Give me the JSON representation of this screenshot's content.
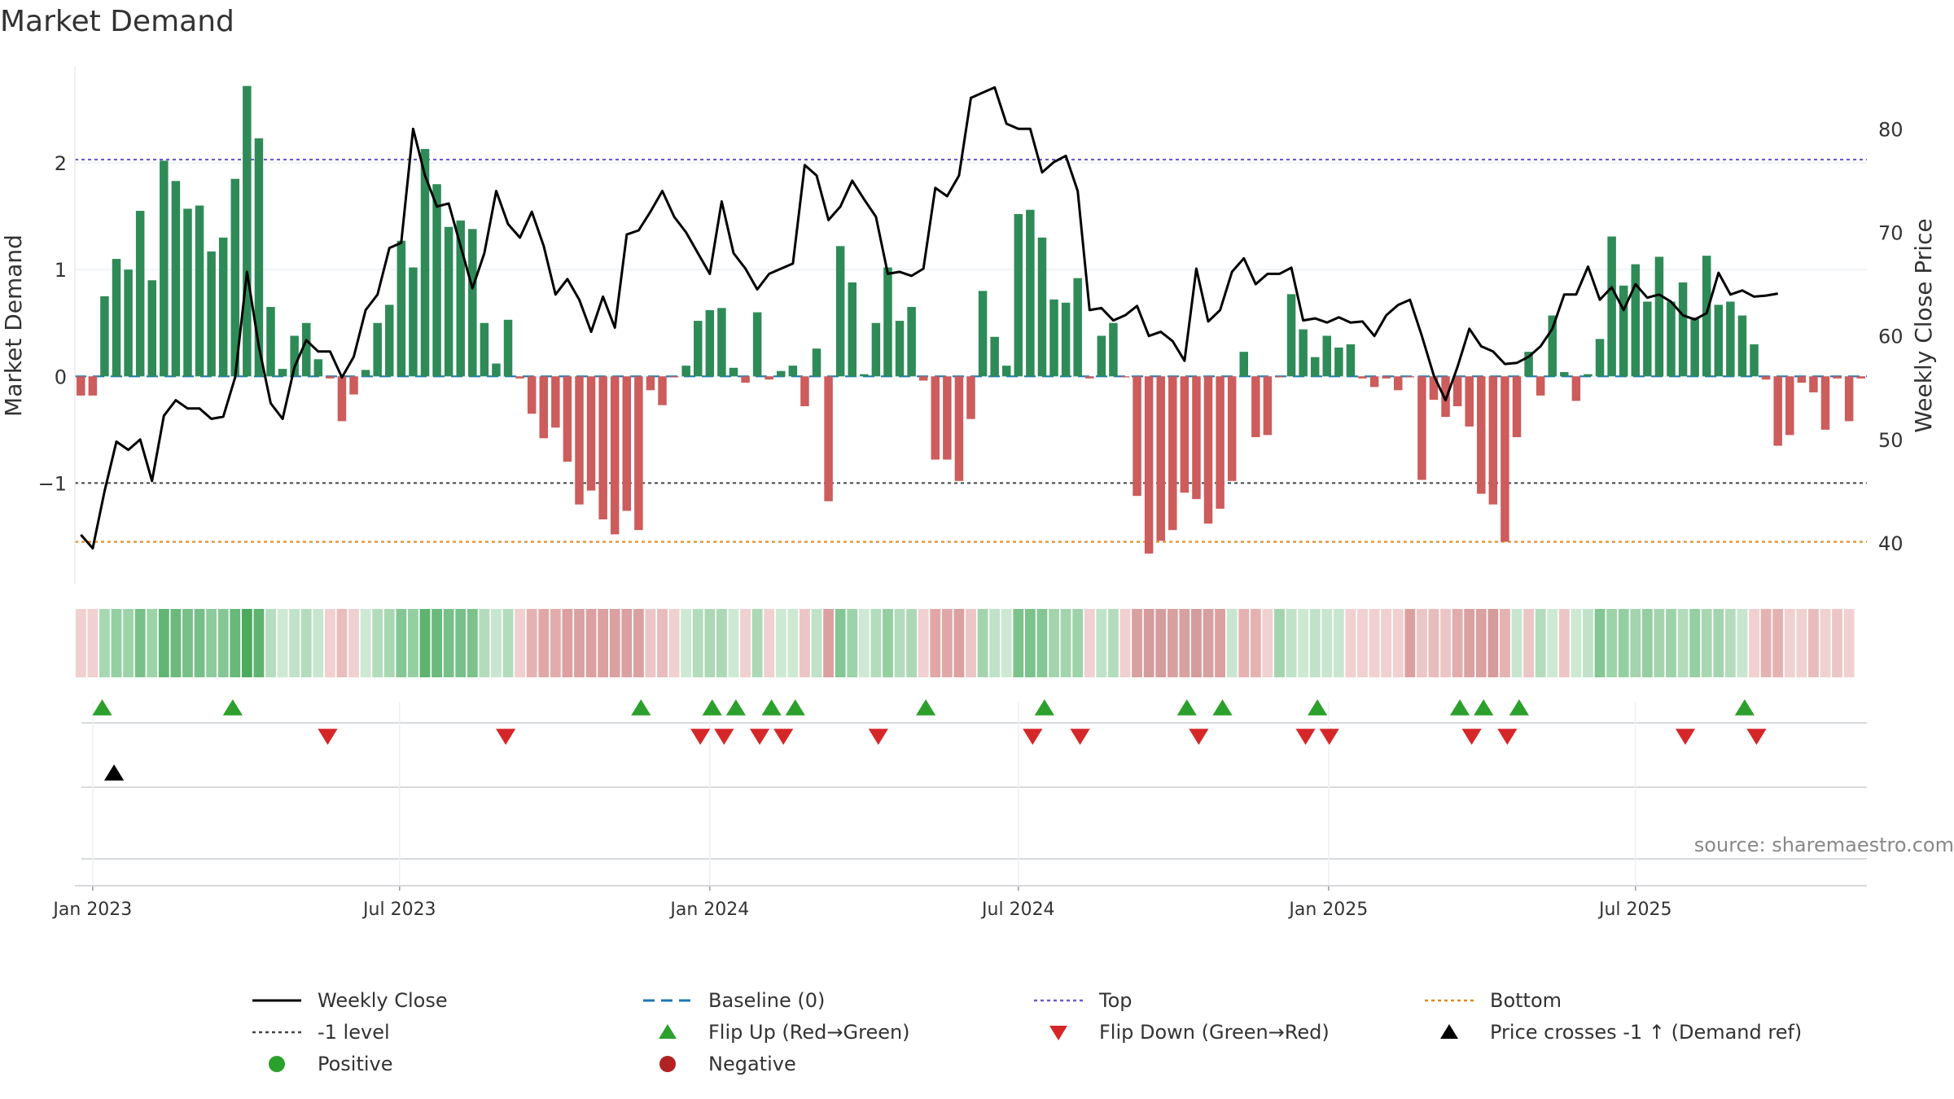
{
  "chart_data": {
    "type": "bar",
    "title": "Market Demand",
    "ylabel": "Market Demand",
    "y2label": "Weekly Close Price",
    "ylim": [
      -1.95,
      2.9
    ],
    "y2lim": [
      36,
      86
    ],
    "yticks": [
      -1,
      0,
      1,
      2
    ],
    "ytick_labels": [
      "−1",
      "0",
      "1",
      "2"
    ],
    "y2ticks": [
      40,
      50,
      60,
      70,
      80
    ],
    "y2tick_labels": [
      "40",
      "50",
      "60",
      "70",
      "80"
    ],
    "x_start_week_offset": -1,
    "xticks": [
      {
        "label": "Jan 2023",
        "week": 0
      },
      {
        "label": "Jul 2023",
        "week": 25.86
      },
      {
        "label": "Jan 2024",
        "week": 52
      },
      {
        "label": "Jul 2024",
        "week": 78
      },
      {
        "label": "Jan 2025",
        "week": 104.14
      },
      {
        "label": "Jul 2025",
        "week": 130
      }
    ],
    "reference_lines": {
      "top": 2.03,
      "bottom": -1.55,
      "level_minus1": -1,
      "baseline": 0
    },
    "demand": [
      -0.18,
      -0.18,
      0.75,
      1.1,
      1,
      1.55,
      0.9,
      2.02,
      1.83,
      1.57,
      1.6,
      1.17,
      1.3,
      1.85,
      2.72,
      2.23,
      0.65,
      0.07,
      0.38,
      0.5,
      0.16,
      -0.02,
      -0.42,
      -0.17,
      0.06,
      0.5,
      0.67,
      1.27,
      1.02,
      2.13,
      1.8,
      1.4,
      1.46,
      1.38,
      0.5,
      0.12,
      0.53,
      -0.02,
      -0.35,
      -0.58,
      -0.48,
      -0.8,
      -1.2,
      -1.07,
      -1.34,
      -1.48,
      -1.26,
      -1.44,
      -0.13,
      -0.27,
      -0.01,
      0.1,
      0.52,
      0.62,
      0.64,
      0.08,
      -0.06,
      0.6,
      -0.03,
      0.05,
      0.1,
      -0.28,
      0.26,
      -1.17,
      1.22,
      0.88,
      0.02,
      0.5,
      1.02,
      0.52,
      0.65,
      -0.04,
      -0.78,
      -0.78,
      -0.98,
      -0.4,
      0.8,
      0.37,
      0.1,
      1.52,
      1.56,
      1.3,
      0.72,
      0.69,
      0.92,
      -0.02,
      0.38,
      0.5,
      -0.01,
      -1.12,
      -1.66,
      -1.54,
      -1.44,
      -1.09,
      -1.15,
      -1.38,
      -1.24,
      -0.98,
      0.23,
      -0.57,
      -0.55,
      -0.01,
      0.77,
      0.44,
      0.18,
      0.38,
      0.27,
      0.3,
      -0.02,
      -0.1,
      -0.02,
      -0.13,
      -0.01,
      -0.97,
      -0.22,
      -0.38,
      -0.28,
      -0.47,
      -1.1,
      -1.2,
      -1.55,
      -0.57,
      0.23,
      -0.18,
      0.57,
      0.04,
      -0.23,
      0.02,
      0.35,
      1.31,
      0.85,
      1.05,
      0.7,
      1.12,
      0.7,
      0.88,
      0.55,
      1.13,
      0.67,
      0.7,
      0.57,
      0.3,
      -0.03,
      -0.65,
      -0.55,
      -0.06,
      -0.15,
      -0.5,
      -0.02,
      -0.42,
      -0.02
    ],
    "weekly_close": [
      40.8,
      39.5,
      45,
      49.8,
      49,
      50,
      46,
      52.3,
      53.8,
      53,
      53,
      52,
      52.2,
      56,
      66.2,
      59,
      53.5,
      52,
      57,
      59.6,
      58.5,
      58.5,
      56,
      58,
      62.5,
      64,
      68.5,
      69,
      80,
      75.5,
      72.5,
      72.8,
      68.7,
      64.6,
      68,
      74,
      70.8,
      69.5,
      72,
      68.7,
      64,
      65.5,
      63.5,
      60.4,
      63.8,
      60.8,
      69.8,
      70.2,
      72,
      74,
      71.5,
      70,
      68,
      66,
      73,
      68,
      66.5,
      64.5,
      66,
      66.5,
      67,
      76.5,
      75.5,
      71.2,
      72.5,
      75,
      73.2,
      71.5,
      66,
      66.2,
      65.8,
      66.5,
      74.3,
      73.5,
      75.5,
      83,
      83.5,
      84,
      80.5,
      80,
      80,
      75.8,
      76.8,
      77.4,
      74,
      62.5,
      62.7,
      61.5,
      62,
      62.9,
      60,
      60.4,
      59.5,
      57.6,
      66.5,
      61.4,
      62.5,
      66.2,
      67.5,
      65,
      66,
      66,
      66.6,
      61.5,
      61.7,
      61.3,
      61.8,
      61.3,
      61.4,
      60,
      62,
      63,
      63.5,
      60,
      56.2,
      53.8,
      57,
      60.7,
      59,
      58.5,
      57.3,
      57.4,
      58,
      59,
      60.7,
      64,
      64,
      66.7,
      63.5,
      64.7,
      62.5,
      65,
      63.7,
      64,
      63.3,
      62,
      61.6,
      62.2,
      66.1,
      64,
      64.4,
      63.8,
      63.9,
      64.1
    ],
    "heat_colors": [
      "#f0d0d0",
      "#f0d0d0",
      "#a8d8b2",
      "#94cfa2",
      "#9dd3a9",
      "#78c089",
      "#9dd3a9",
      "#62b674",
      "#6bba7c",
      "#78c089",
      "#76bf88",
      "#8ccb9b",
      "#84c794",
      "#68b879",
      "#4aaa5e",
      "#5eb371",
      "#b6ddbf",
      "#cde9d3",
      "#bfe2c8",
      "#b3dcbd",
      "#c8e6cf",
      "#f0d0d0",
      "#eabdbd",
      "#f0d0d0",
      "#cde9d3",
      "#b3dcbd",
      "#a8d8b2",
      "#84c794",
      "#94cfa2",
      "#5eb371",
      "#6bba7c",
      "#78c089",
      "#78c089",
      "#7bc28b",
      "#b3dcbd",
      "#c8e6cf",
      "#b3dcbd",
      "#f0d0d0",
      "#e5b2b2",
      "#e1a7a7",
      "#e3acac",
      "#dda0a0",
      "#dba0a0",
      "#dda0a0",
      "#dba0a0",
      "#dba0a0",
      "#dba0a0",
      "#dba0a0",
      "#ecc6c6",
      "#e8bcbc",
      "#f0d0d0",
      "#cde9d3",
      "#b3dcbd",
      "#acd8b6",
      "#acd8b6",
      "#cde9d3",
      "#f0d0d0",
      "#acd8b6",
      "#f0d0d0",
      "#cde9d3",
      "#cde9d3",
      "#ecc6c6",
      "#bfe2c8",
      "#dba0a0",
      "#84c794",
      "#9dd3a9",
      "#cde9d3",
      "#b3dcbd",
      "#94cfa2",
      "#b3dcbd",
      "#acd8b6",
      "#f0d0d0",
      "#e1a7a7",
      "#e1a7a7",
      "#dda0a0",
      "#ecc6c6",
      "#a4d4ae",
      "#bfe2c8",
      "#cde9d3",
      "#7bc28b",
      "#7bc28b",
      "#84c794",
      "#a4d4ae",
      "#a4d4ae",
      "#9dd3a9",
      "#f0d0d0",
      "#bfe2c8",
      "#b3dcbd",
      "#f0d0d0",
      "#d9a0a0",
      "#d59c9c",
      "#d59c9c",
      "#d9a0a0",
      "#d9a0a0",
      "#d59c9c",
      "#d9a0a0",
      "#dda0a0",
      "#c8e6cf",
      "#e5b2b2",
      "#e5b2b2",
      "#f0d0d0",
      "#a4d4ae",
      "#bfe2c8",
      "#cde9d3",
      "#bfe2c8",
      "#c8e6cf",
      "#c8e6cf",
      "#f0d0d0",
      "#f0d0d0",
      "#f0d0d0",
      "#f0d0d0",
      "#f0d0d0",
      "#dda0a0",
      "#ecc6c6",
      "#e8bcbc",
      "#ecc6c6",
      "#e3acac",
      "#dba0a0",
      "#dba0a0",
      "#d59c9c",
      "#e5b2b2",
      "#c8e6cf",
      "#ecc6c6",
      "#b3dcbd",
      "#cde9d3",
      "#ecc6c6",
      "#cde9d3",
      "#bfe2c8",
      "#84c794",
      "#9dd3a9",
      "#94cfa2",
      "#a4d4ae",
      "#94cfa2",
      "#a4d4ae",
      "#9dd3a9",
      "#b3dcbd",
      "#94cfa2",
      "#a8d8b2",
      "#a4d4ae",
      "#b3dcbd",
      "#c8e6cf",
      "#f0d0d0",
      "#e5b2b2",
      "#e5b2b2",
      "#f0d0d0",
      "#f0d0d0",
      "#e8bcbc",
      "#f0d0d0",
      "#ecc6c6",
      "#f0d0d0"
    ],
    "flip_up_weeks": [
      0.8,
      11.8,
      46.2,
      52.2,
      54.2,
      57.2,
      59.2,
      70.2,
      80.2,
      92.2,
      95.2,
      103.2,
      115.2,
      117.2,
      120.2,
      139.2
    ],
    "flip_down_weeks": [
      19.8,
      34.8,
      51.2,
      53.2,
      56.2,
      58.2,
      66.2,
      79.2,
      83.2,
      93.2,
      102.2,
      104.2,
      116.2,
      119.2,
      134.2,
      140.2
    ],
    "price_cross_weeks": [
      1.8
    ],
    "source_note": "source: sharemaestro.com",
    "legend": [
      {
        "label": "Weekly Close",
        "symbol": "line-solid",
        "color": "#000000"
      },
      {
        "label": "Baseline (0)",
        "symbol": "line-dash",
        "color": "#1f77b4"
      },
      {
        "label": "Top",
        "symbol": "line-dot",
        "color": "#6a5acd"
      },
      {
        "label": "Bottom",
        "symbol": "line-dot",
        "color": "#e08a1e"
      },
      {
        "label": "-1 level",
        "symbol": "line-dot",
        "color": "#444444"
      },
      {
        "label": "Flip Up (Red→Green)",
        "symbol": "triangle-up",
        "color": "#2ca02c"
      },
      {
        "label": "Flip Down (Green→Red)",
        "symbol": "triangle-down",
        "color": "#d62728"
      },
      {
        "label": "Price crosses -1 ↑ (Demand ref)",
        "symbol": "triangle-up",
        "color": "#000000"
      },
      {
        "label": "Positive",
        "symbol": "circle",
        "color": "#2ca02c"
      },
      {
        "label": "Negative",
        "symbol": "circle",
        "color": "#b22222"
      }
    ],
    "colors": {
      "positive_bar": "#2e8b57",
      "negative_bar": "#cd5c5c",
      "price_line": "#000000"
    }
  }
}
